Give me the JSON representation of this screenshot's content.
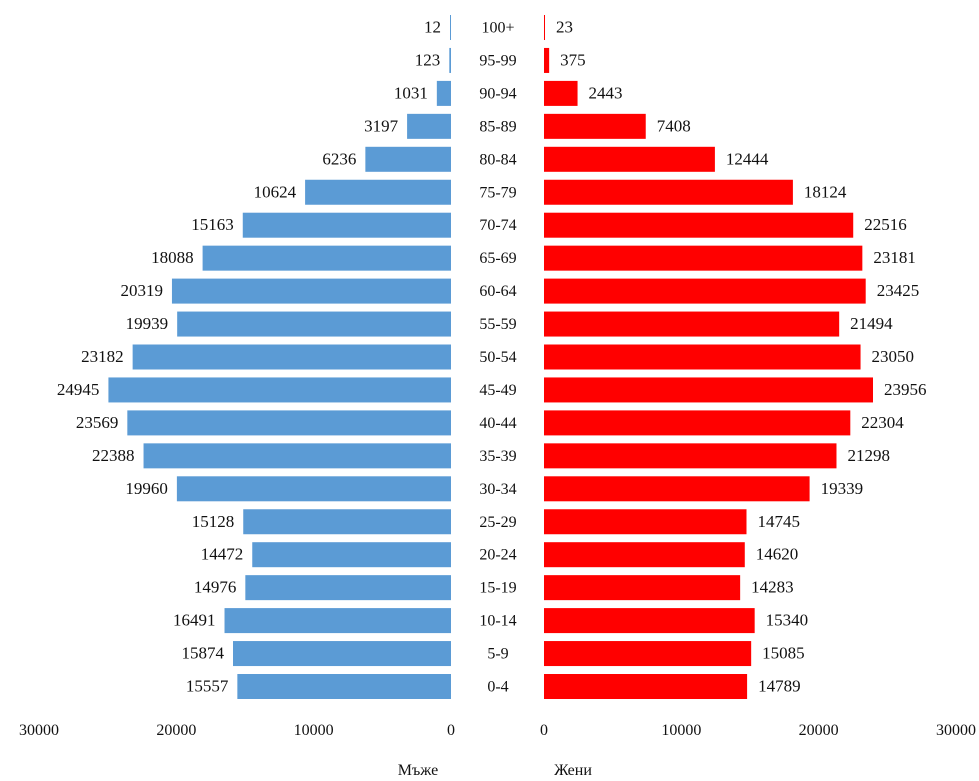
{
  "chart_data": {
    "type": "bar",
    "orientation": "horizontal",
    "layout": "population-pyramid",
    "categories": [
      "100+",
      "95-99",
      "90-94",
      "85-89",
      "80-84",
      "75-79",
      "70-74",
      "65-69",
      "60-64",
      "55-59",
      "50-54",
      "45-49",
      "40-44",
      "35-39",
      "30-34",
      "25-29",
      "20-24",
      "15-19",
      "10-14",
      "5-9",
      "0-4"
    ],
    "series": [
      {
        "name": "Мъже",
        "side": "left",
        "color": "#5B9BD5",
        "values": [
          12,
          123,
          1031,
          3197,
          6236,
          10624,
          15163,
          18088,
          20319,
          19939,
          23182,
          24945,
          23569,
          22388,
          19960,
          15128,
          14472,
          14976,
          16491,
          15874,
          15557
        ]
      },
      {
        "name": "Жени",
        "side": "right",
        "color": "#FF0000",
        "values": [
          23,
          375,
          2443,
          7408,
          12444,
          18124,
          22516,
          23181,
          23425,
          21494,
          23050,
          23956,
          22304,
          21298,
          19339,
          14745,
          14620,
          14283,
          15340,
          15085,
          14789
        ]
      }
    ],
    "xlim": [
      0,
      30000
    ],
    "ticks": {
      "left": [
        "30000",
        "20000",
        "10000",
        "0"
      ],
      "right": [
        "0",
        "10000",
        "20000",
        "30000"
      ]
    },
    "xlabel_left": "Мъже",
    "xlabel_right": "Жени",
    "data_labels": true,
    "grid": false,
    "legend": "none"
  }
}
